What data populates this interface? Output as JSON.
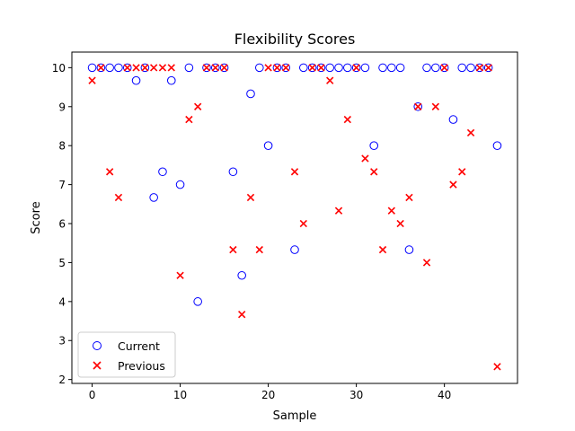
{
  "chart_data": {
    "type": "scatter",
    "title": "Flexibility Scores",
    "xlabel": "Sample",
    "ylabel": "Score",
    "xlim": [
      -2.3,
      48.3
    ],
    "ylim": [
      1.9,
      10.4
    ],
    "xticks": [
      0,
      10,
      20,
      30,
      40
    ],
    "yticks": [
      2,
      3,
      4,
      5,
      6,
      7,
      8,
      9,
      10
    ],
    "grid": false,
    "legend_position": "lower-left",
    "series": [
      {
        "name": "Current",
        "marker": "circle-open",
        "color": "#0000ff",
        "x": [
          0,
          1,
          2,
          3,
          4,
          5,
          6,
          7,
          8,
          9,
          10,
          11,
          12,
          13,
          14,
          15,
          16,
          17,
          18,
          19,
          20,
          21,
          22,
          23,
          24,
          25,
          26,
          27,
          28,
          29,
          30,
          31,
          32,
          33,
          34,
          35,
          36,
          37,
          38,
          39,
          40,
          41,
          42,
          43,
          44,
          45,
          46
        ],
        "y": [
          10,
          10,
          10,
          10,
          10,
          9.67,
          10,
          6.67,
          7.33,
          9.67,
          7,
          10,
          4,
          10,
          10,
          10,
          7.33,
          4.67,
          9.33,
          10,
          8,
          10,
          10,
          5.33,
          10,
          10,
          10,
          10,
          10,
          10,
          10,
          10,
          8,
          10,
          10,
          10,
          5.33,
          9,
          10,
          10,
          10,
          8.67,
          10,
          10,
          10,
          10,
          8
        ]
      },
      {
        "name": "Previous",
        "marker": "x",
        "color": "#ff0000",
        "x": [
          0,
          1,
          2,
          3,
          4,
          5,
          6,
          7,
          8,
          9,
          10,
          11,
          12,
          13,
          14,
          15,
          16,
          17,
          18,
          19,
          20,
          21,
          22,
          23,
          24,
          25,
          26,
          27,
          28,
          29,
          30,
          31,
          32,
          33,
          34,
          35,
          36,
          37,
          38,
          39,
          40,
          41,
          42,
          43,
          44,
          45,
          46
        ],
        "y": [
          9.67,
          10,
          7.33,
          6.67,
          10,
          10,
          10,
          10,
          10,
          10,
          4.67,
          8.67,
          9,
          10,
          10,
          10,
          5.33,
          3.67,
          6.67,
          5.33,
          10,
          10,
          10,
          7.33,
          6,
          10,
          10,
          9.67,
          6.33,
          8.67,
          10,
          7.67,
          7.33,
          5.33,
          6.33,
          6,
          6.67,
          9,
          5,
          9,
          10,
          7,
          7.33,
          8.33,
          10,
          10,
          2.33
        ]
      }
    ]
  }
}
